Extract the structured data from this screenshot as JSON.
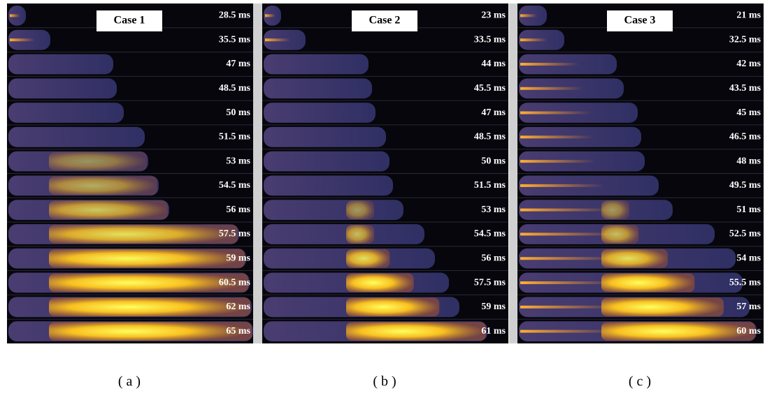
{
  "figure": {
    "panels": [
      {
        "title": "Case 1",
        "caption": "( a )",
        "times": [
          "28.5 ms",
          "35.5 ms",
          "47 ms",
          "48.5 ms",
          "50 ms",
          "51.5 ms",
          "53 ms",
          "54.5 ms",
          "56 ms",
          "57.5 ms",
          "59 ms",
          "60.5 ms",
          "62 ms",
          "65 ms"
        ]
      },
      {
        "title": "Case 2",
        "caption": "( b )",
        "times": [
          "23 ms",
          "33.5 ms",
          "44 ms",
          "45.5 ms",
          "47 ms",
          "48.5 ms",
          "50 ms",
          "51.5 ms",
          "53 ms",
          "54.5 ms",
          "56 ms",
          "57.5 ms",
          "59 ms",
          "61 ms"
        ]
      },
      {
        "title": "Case 3",
        "caption": "( c )",
        "times": [
          "21 ms",
          "32.5 ms",
          "42 ms",
          "43.5 ms",
          "45 ms",
          "46.5 ms",
          "48 ms",
          "49.5 ms",
          "51 ms",
          "52.5 ms",
          "54 ms",
          "55.5 ms",
          "57 ms",
          "60 ms"
        ]
      }
    ]
  }
}
